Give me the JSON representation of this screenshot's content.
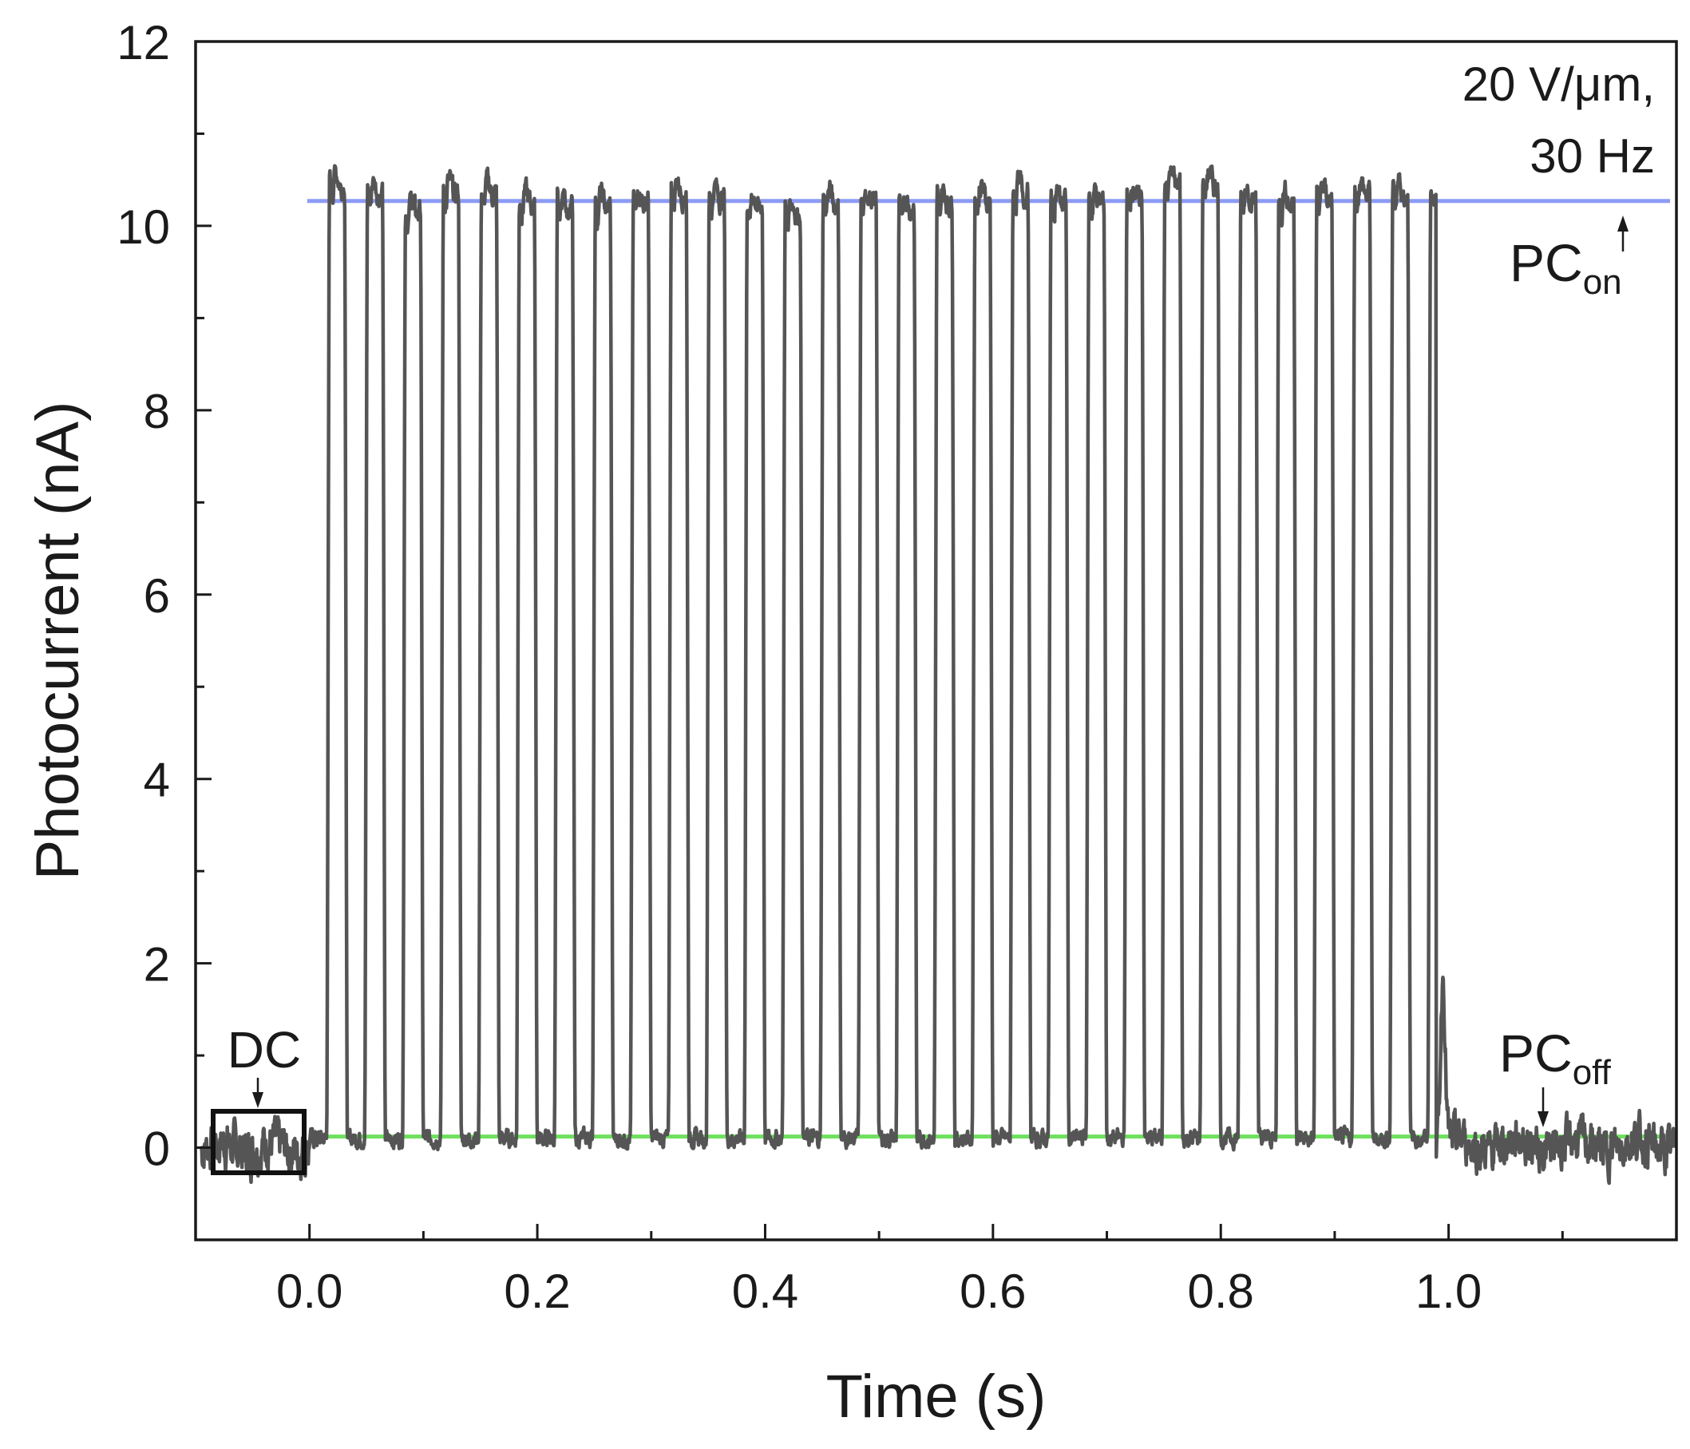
{
  "chart_data": {
    "type": "line",
    "title": "",
    "xlabel": "Time (s)",
    "ylabel": "Photocurrent (nA)",
    "xlim": [
      -0.1,
      1.2
    ],
    "ylim": [
      -1,
      12
    ],
    "x_ticks": [
      0.0,
      0.2,
      0.4,
      0.6,
      0.8,
      1.0
    ],
    "x_tick_labels": [
      "0.0",
      "0.2",
      "0.4",
      "0.6",
      "0.8",
      "1.0"
    ],
    "y_ticks": [
      0,
      2,
      4,
      6,
      8,
      10,
      12
    ],
    "y_tick_labels": [
      "0",
      "2",
      "4",
      "6",
      "8",
      "10",
      "12"
    ],
    "grid": false,
    "series": [
      {
        "name": "Photocurrent",
        "color": "#555555",
        "signal": {
          "baseline_nA": 0.1,
          "on_level_nA": 10.3,
          "frequency_Hz": 30,
          "pulse_start_s": 0.015,
          "pulse_end_s": 0.985,
          "pulse_peaks_nA": [
            10.5,
            10.4,
            10.2,
            10.4,
            10.4,
            10.3,
            10.25,
            10.25,
            10.3,
            10.4,
            10.35,
            10.25,
            10.2,
            10.3,
            10.3,
            10.25,
            10.3,
            10.35,
            10.4,
            10.3,
            10.3,
            10.35,
            10.5,
            10.5,
            10.35,
            10.3,
            10.35,
            10.4,
            10.4,
            10.4
          ],
          "trailing_spike": {
            "x": 0.995,
            "y": 1.95
          },
          "noise_amplitude_nA": 0.12
        }
      }
    ],
    "reference_lines": [
      {
        "name": "PC_on level",
        "y": 10.27,
        "color": "#8C9BF5"
      },
      {
        "name": "PC_off level",
        "y": 0.12,
        "color": "#6EE05E"
      }
    ],
    "annotations": {
      "condition_line1": "20 V/μm,",
      "condition_line2": "30 Hz",
      "pc_on_main": "PC",
      "pc_on_sub": "on",
      "pc_off_main": "PC",
      "pc_off_sub": "off",
      "dc_label": "DC"
    }
  }
}
